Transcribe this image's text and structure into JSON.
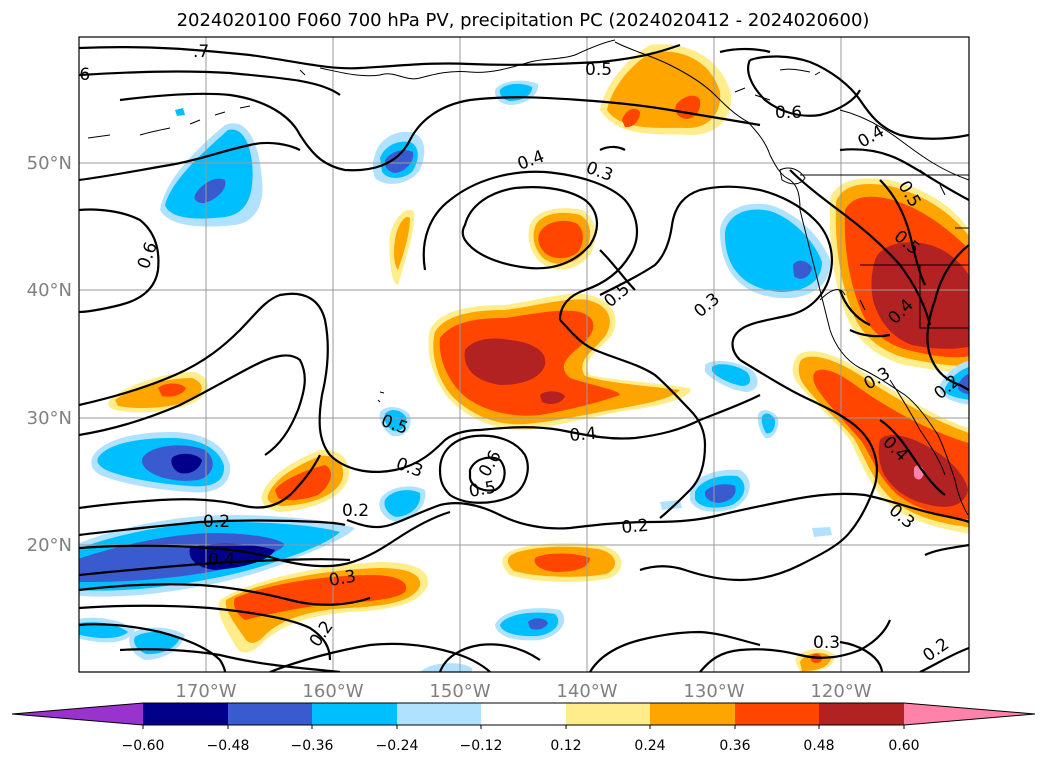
{
  "title": "2024020100 F060 700 hPa PV, precipitation PC (2024020412 - 2024020600)",
  "map": {
    "lat_labels": [
      "50°N",
      "40°N",
      "30°N",
      "20°N"
    ],
    "lon_labels": [
      "170°W",
      "160°W",
      "150°W",
      "140°W",
      "130°W",
      "120°W"
    ],
    "contour_labels": [
      ".7",
      ".6",
      "0.5",
      "0.6",
      "0.4",
      "0.4",
      "0.3",
      "0.5",
      "0.6",
      "0.5",
      "0.3",
      "0.5",
      "0.4",
      "0.5",
      "0.6",
      "0.3",
      "0.3",
      "0.5",
      "0.2",
      "0.4",
      "0.3",
      "0.2",
      "0.2",
      "0.4",
      "0.4",
      "0.3",
      "0.2",
      "0.2",
      "0.3",
      "0.2"
    ]
  },
  "colorbar": {
    "ticks": [
      "−0.60",
      "−0.48",
      "−0.36",
      "−0.24",
      "−0.12",
      "0.12",
      "0.24",
      "0.36",
      "0.48",
      "0.60"
    ],
    "colors": [
      "#9a32cd",
      "#00008b",
      "#3a5bd0",
      "#00bfff",
      "#b0e2ff",
      "#ffffff",
      "#ffec8b",
      "#ffa500",
      "#ff4500",
      "#b22222",
      "#ff82ab"
    ]
  },
  "colors": {
    "neg_light": "#b0e2ff",
    "neg_sky": "#00bfff",
    "neg_mid": "#3a5bd0",
    "neg_dark": "#00008b",
    "pos_yellow": "#ffec8b",
    "pos_orange": "#ffa500",
    "pos_redorange": "#ff4500",
    "pos_darkred": "#b22222",
    "pos_pink": "#ff82ab"
  }
}
